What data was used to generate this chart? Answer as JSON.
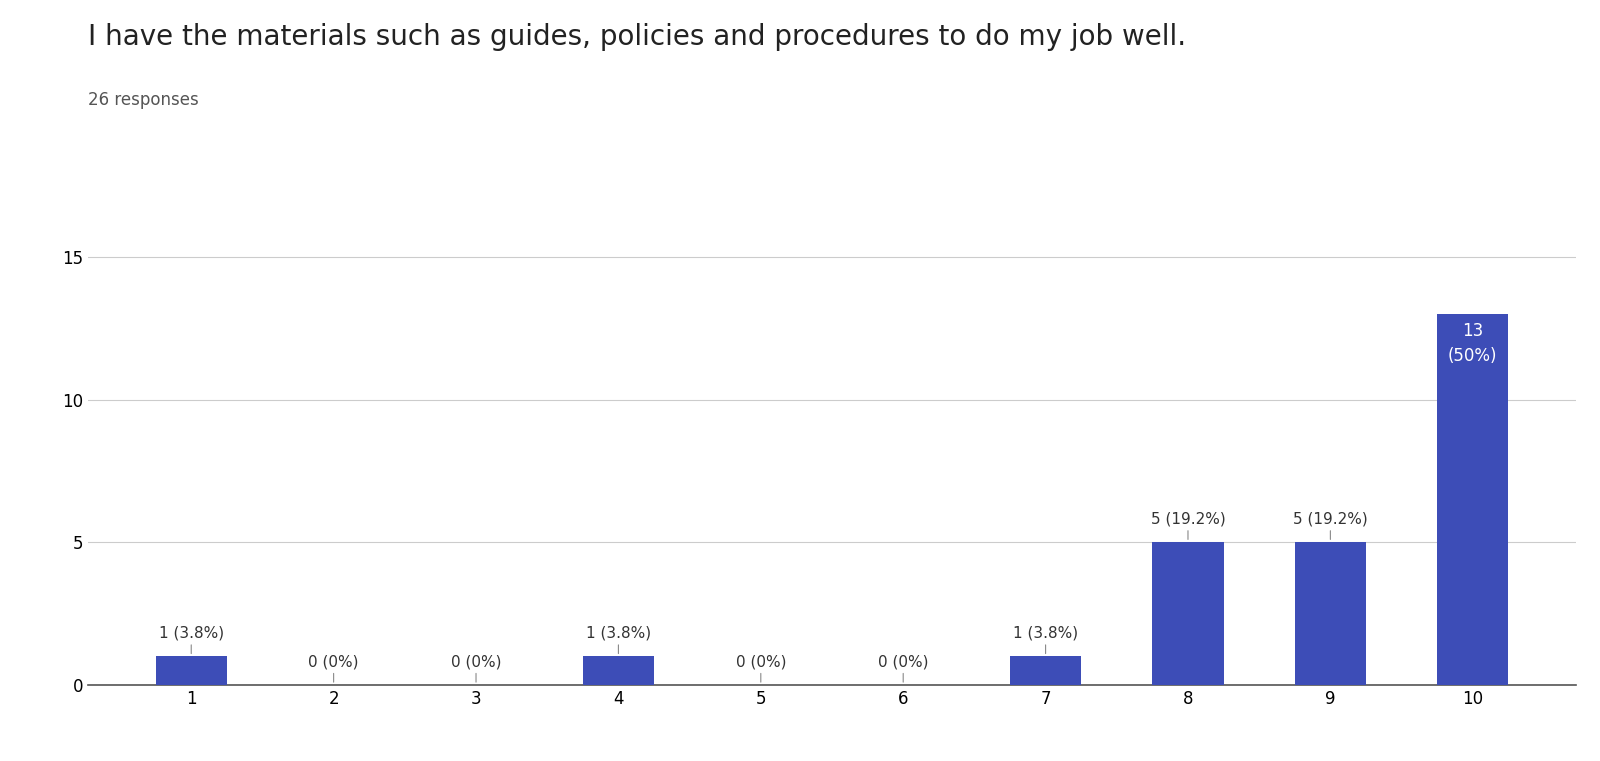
{
  "title": "I have the materials such as guides, policies and procedures to do my job well.",
  "subtitle": "26 responses",
  "categories": [
    1,
    2,
    3,
    4,
    5,
    6,
    7,
    8,
    9,
    10
  ],
  "values": [
    1,
    0,
    0,
    1,
    0,
    0,
    1,
    5,
    5,
    13
  ],
  "labels": [
    "1 (3.8%)",
    "0 (0%)",
    "0 (0%)",
    "1 (3.8%)",
    "0 (0%)",
    "0 (0%)",
    "1 (3.8%)",
    "5 (19.2%)",
    "5 (19.2%)",
    "13\n(50%)"
  ],
  "bar_color": "#3d4db7",
  "background_color": "#ffffff",
  "ylim": [
    0,
    16
  ],
  "yticks": [
    0,
    5,
    10,
    15
  ],
  "title_fontsize": 20,
  "subtitle_fontsize": 12,
  "label_fontsize": 11,
  "tick_fontsize": 12,
  "grid_color": "#cccccc",
  "label_color_outside": "#333333",
  "label_color_inside": "#ffffff"
}
